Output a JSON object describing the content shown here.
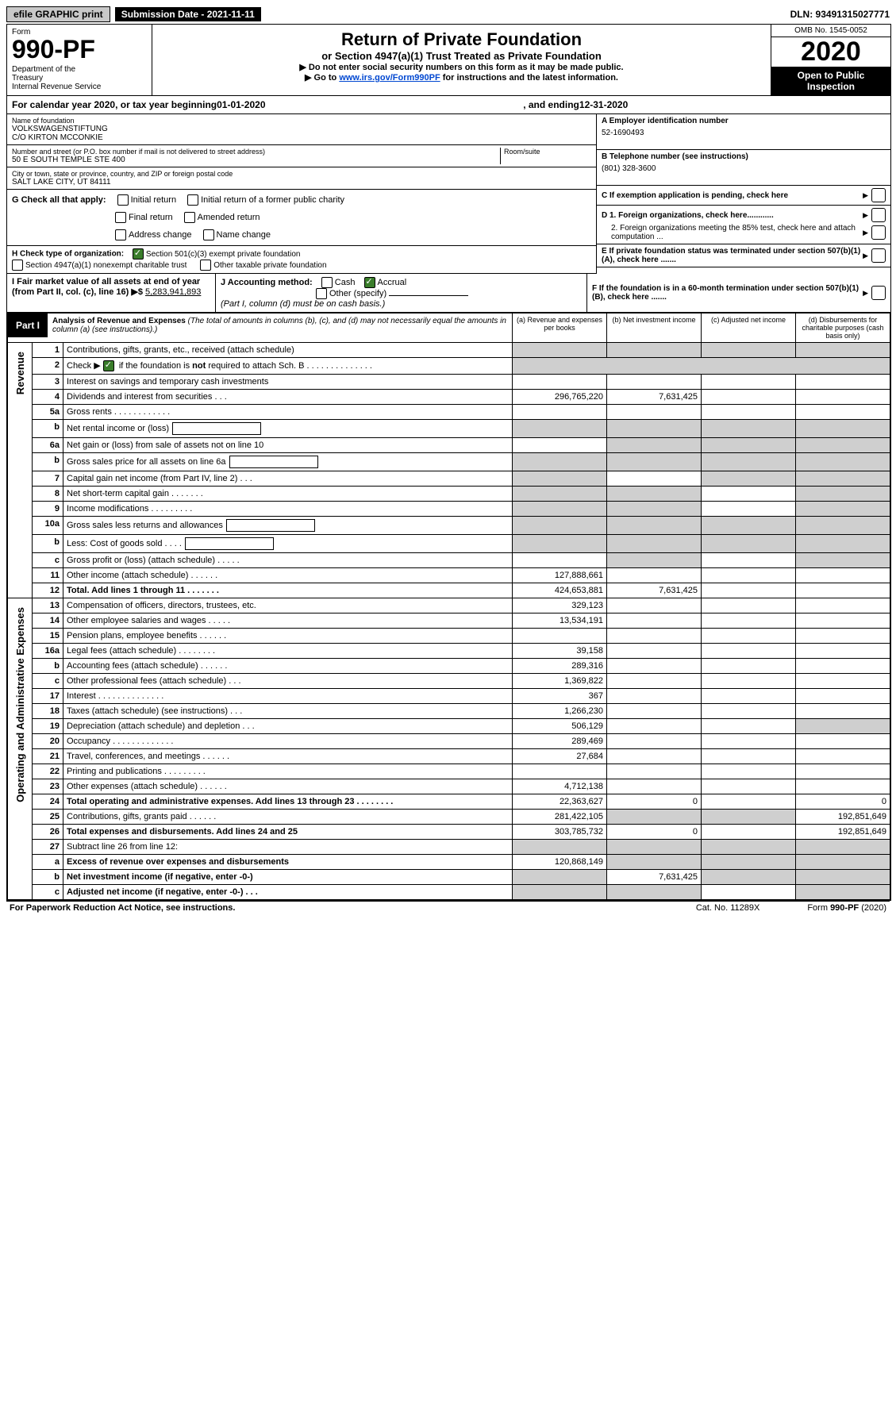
{
  "top": {
    "efile": "efile GRAPHIC print",
    "submission": "Submission Date - 2021-11-11",
    "dln": "DLN: 93491315027771"
  },
  "header": {
    "form_label": "Form",
    "form_number": "990-PF",
    "dept": "Department of the Treasury\nInternal Revenue Service",
    "title": "Return of Private Foundation",
    "subtitle": "or Section 4947(a)(1) Trust Treated as Private Foundation",
    "note1": "▶ Do not enter social security numbers on this form as it may be made public.",
    "note2_pre": "▶ Go to ",
    "note2_link": "www.irs.gov/Form990PF",
    "note2_post": " for instructions and the latest information.",
    "omb": "OMB No. 1545-0052",
    "year": "2020",
    "open": "Open to Public Inspection"
  },
  "cal": {
    "pre": "For calendar year 2020, or tax year beginning ",
    "begin": "01-01-2020",
    "mid": ", and ending ",
    "end": "12-31-2020"
  },
  "foundation": {
    "name_label": "Name of foundation",
    "name1": "VOLKSWAGENSTIFTUNG",
    "name2": "C/O KIRTON MCCONKIE",
    "addr_label": "Number and street (or P.O. box number if mail is not delivered to street address)",
    "addr": "50 E SOUTH TEMPLE STE 400",
    "room_label": "Room/suite",
    "city_label": "City or town, state or province, country, and ZIP or foreign postal code",
    "city": "SALT LAKE CITY, UT  84111",
    "ein_label": "A Employer identification number",
    "ein": "52-1690493",
    "tel_label": "B Telephone number (see instructions)",
    "tel": "(801) 328-3600",
    "c_label": "C If exemption application is pending, check here",
    "d1": "D 1. Foreign organizations, check here............",
    "d2": "2. Foreign organizations meeting the 85% test, check here and attach computation ...",
    "e": "E  If private foundation status was terminated under section 507(b)(1)(A), check here .......",
    "f": "F  If the foundation is in a 60-month termination under section 507(b)(1)(B), check here .......",
    "g_label": "G Check all that apply:",
    "g_initial": "Initial return",
    "g_initial_former": "Initial return of a former public charity",
    "g_final": "Final return",
    "g_amended": "Amended return",
    "g_addr": "Address change",
    "g_name": "Name change",
    "h_label": "H Check type of organization:",
    "h_501c3": "Section 501(c)(3) exempt private foundation",
    "h_4947": "Section 4947(a)(1) nonexempt charitable trust",
    "h_other": "Other taxable private foundation",
    "i_label": "I Fair market value of all assets at end of year (from Part II, col. (c), line 16) ▶$ ",
    "i_value": "5,283,941,893",
    "j_label": "J Accounting method:",
    "j_cash": "Cash",
    "j_accrual": "Accrual",
    "j_other": "Other (specify)",
    "j_note": "(Part I, column (d) must be on cash basis.)"
  },
  "part1": {
    "label": "Part I",
    "title": "Analysis of Revenue and Expenses",
    "note": "(The total of amounts in columns (b), (c), and (d) may not necessarily equal the amounts in column (a) (see instructions).)",
    "col_a": "(a)  Revenue and expenses per books",
    "col_b": "(b)  Net investment income",
    "col_c": "(c)  Adjusted net income",
    "col_d": "(d)  Disbursements for charitable purposes (cash basis only)"
  },
  "sections": {
    "revenue": "Revenue",
    "expenses": "Operating and Administrative Expenses"
  },
  "rows": [
    {
      "n": "1",
      "d": "Contributions, gifts, grants, etc., received (attach schedule)",
      "a": "",
      "b": "",
      "c": "",
      "dd": "",
      "ga": true,
      "gb": true,
      "gc": true,
      "gd": true
    },
    {
      "n": "2",
      "d": "Check ▶ [✓] if the foundation is not required to attach Sch. B",
      "a": "",
      "b": "",
      "c": "",
      "dd": "",
      "merged": true,
      "chk": true
    },
    {
      "n": "3",
      "d": "Interest on savings and temporary cash investments",
      "a": "",
      "b": "",
      "c": "",
      "dd": ""
    },
    {
      "n": "4",
      "d": "Dividends and interest from securities   .   .   .",
      "a": "296,765,220",
      "b": "7,631,425",
      "c": "",
      "dd": ""
    },
    {
      "n": "5a",
      "d": "Gross rents   .   .   .   .   .   .   .   .   .   .   .   .",
      "a": "",
      "b": "",
      "c": "",
      "dd": ""
    },
    {
      "n": "b",
      "d": "Net rental income or (loss)",
      "a": "",
      "b": "",
      "c": "",
      "dd": "",
      "box": true,
      "gb": true,
      "gc": true,
      "gd": true,
      "ga": true
    },
    {
      "n": "6a",
      "d": "Net gain or (loss) from sale of assets not on line 10",
      "a": "",
      "b": "",
      "c": "",
      "dd": "",
      "gb": true,
      "gc": true,
      "gd": true
    },
    {
      "n": "b",
      "d": "Gross sales price for all assets on line 6a",
      "a": "",
      "b": "",
      "c": "",
      "dd": "",
      "box": true,
      "ga": true,
      "gb": true,
      "gc": true,
      "gd": true
    },
    {
      "n": "7",
      "d": "Capital gain net income (from Part IV, line 2)   .   .   .",
      "a": "",
      "b": "",
      "c": "",
      "dd": "",
      "ga": true,
      "gc": true,
      "gd": true
    },
    {
      "n": "8",
      "d": "Net short-term capital gain   .   .   .   .   .   .   .",
      "a": "",
      "b": "",
      "c": "",
      "dd": "",
      "ga": true,
      "gb": true,
      "gd": true
    },
    {
      "n": "9",
      "d": "Income modifications  .   .   .   .   .   .   .   .   .",
      "a": "",
      "b": "",
      "c": "",
      "dd": "",
      "ga": true,
      "gb": true,
      "gd": true
    },
    {
      "n": "10a",
      "d": "Gross sales less returns and allowances",
      "a": "",
      "b": "",
      "c": "",
      "dd": "",
      "box": true,
      "ga": true,
      "gb": true,
      "gc": true,
      "gd": true
    },
    {
      "n": "b",
      "d": "Less: Cost of goods sold   .   .   .   .",
      "a": "",
      "b": "",
      "c": "",
      "dd": "",
      "box": true,
      "ga": true,
      "gb": true,
      "gc": true,
      "gd": true
    },
    {
      "n": "c",
      "d": "Gross profit or (loss) (attach schedule)   .   .   .   .   .",
      "a": "",
      "b": "",
      "c": "",
      "dd": "",
      "gb": true,
      "gd": true
    },
    {
      "n": "11",
      "d": "Other income (attach schedule)   .   .   .   .   .   .",
      "a": "127,888,661",
      "b": "",
      "c": "",
      "dd": ""
    },
    {
      "n": "12",
      "d": "Total. Add lines 1 through 11   .   .   .   .   .   .   .",
      "a": "424,653,881",
      "b": "7,631,425",
      "c": "",
      "dd": "",
      "bold": true
    },
    {
      "n": "13",
      "d": "Compensation of officers, directors, trustees, etc.",
      "a": "329,123",
      "b": "",
      "c": "",
      "dd": "",
      "sec": "exp"
    },
    {
      "n": "14",
      "d": "Other employee salaries and wages   .   .   .   .   .",
      "a": "13,534,191",
      "b": "",
      "c": "",
      "dd": ""
    },
    {
      "n": "15",
      "d": "Pension plans, employee benefits   .   .   .   .   .   .",
      "a": "",
      "b": "",
      "c": "",
      "dd": ""
    },
    {
      "n": "16a",
      "d": "Legal fees (attach schedule)  .   .   .   .   .   .   .   .",
      "a": "39,158",
      "b": "",
      "c": "",
      "dd": ""
    },
    {
      "n": "b",
      "d": "Accounting fees (attach schedule)  .   .   .   .   .   .",
      "a": "289,316",
      "b": "",
      "c": "",
      "dd": ""
    },
    {
      "n": "c",
      "d": "Other professional fees (attach schedule)   .   .   .",
      "a": "1,369,822",
      "b": "",
      "c": "",
      "dd": ""
    },
    {
      "n": "17",
      "d": "Interest  .   .   .   .   .   .   .   .   .   .   .   .   .   .",
      "a": "367",
      "b": "",
      "c": "",
      "dd": ""
    },
    {
      "n": "18",
      "d": "Taxes (attach schedule) (see instructions)   .   .   .",
      "a": "1,266,230",
      "b": "",
      "c": "",
      "dd": ""
    },
    {
      "n": "19",
      "d": "Depreciation (attach schedule) and depletion   .   .   .",
      "a": "506,129",
      "b": "",
      "c": "",
      "dd": "",
      "gd": true
    },
    {
      "n": "20",
      "d": "Occupancy  .   .   .   .   .   .   .   .   .   .   .   .   .",
      "a": "289,469",
      "b": "",
      "c": "",
      "dd": ""
    },
    {
      "n": "21",
      "d": "Travel, conferences, and meetings  .   .   .   .   .   .",
      "a": "27,684",
      "b": "",
      "c": "",
      "dd": ""
    },
    {
      "n": "22",
      "d": "Printing and publications  .   .   .   .   .   .   .   .   .",
      "a": "",
      "b": "",
      "c": "",
      "dd": ""
    },
    {
      "n": "23",
      "d": "Other expenses (attach schedule)  .   .   .   .   .   .",
      "a": "4,712,138",
      "b": "",
      "c": "",
      "dd": ""
    },
    {
      "n": "24",
      "d": "Total operating and administrative expenses. Add lines 13 through 23   .   .   .   .   .   .   .   .",
      "a": "22,363,627",
      "b": "0",
      "c": "",
      "dd": "0",
      "bold": true
    },
    {
      "n": "25",
      "d": "Contributions, gifts, grants paid   .   .   .   .   .   .",
      "a": "281,422,105",
      "b": "",
      "c": "",
      "dd": "192,851,649",
      "gb": true,
      "gc": true
    },
    {
      "n": "26",
      "d": "Total expenses and disbursements. Add lines 24 and 25",
      "a": "303,785,732",
      "b": "0",
      "c": "",
      "dd": "192,851,649",
      "bold": true
    },
    {
      "n": "27",
      "d": "Subtract line 26 from line 12:",
      "a": "",
      "b": "",
      "c": "",
      "dd": "",
      "ga": true,
      "gb": true,
      "gc": true,
      "gd": true,
      "sec": "end"
    },
    {
      "n": "a",
      "d": "Excess of revenue over expenses and disbursements",
      "a": "120,868,149",
      "b": "",
      "c": "",
      "dd": "",
      "bold": true,
      "gb": true,
      "gc": true,
      "gd": true
    },
    {
      "n": "b",
      "d": "Net investment income (if negative, enter -0-)",
      "a": "",
      "b": "7,631,425",
      "c": "",
      "dd": "",
      "bold": true,
      "ga": true,
      "gc": true,
      "gd": true
    },
    {
      "n": "c",
      "d": "Adjusted net income (if negative, enter -0-)   .   .   .",
      "a": "",
      "b": "",
      "c": "",
      "dd": "",
      "bold": true,
      "ga": true,
      "gb": true,
      "gd": true
    }
  ],
  "footer": {
    "left": "For Paperwork Reduction Act Notice, see instructions.",
    "mid": "Cat. No. 11289X",
    "right": "Form 990-PF (2020)"
  }
}
